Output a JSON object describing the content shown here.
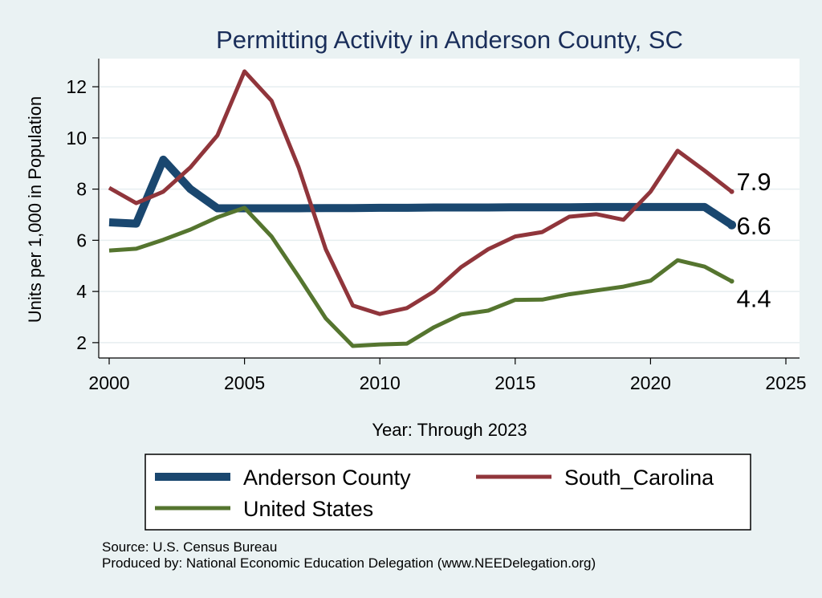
{
  "chart_data": {
    "type": "line",
    "title": "Permitting Activity in Anderson County, SC",
    "xlabel": "Year: Through 2023",
    "ylabel": "Units per 1,000 in Population",
    "xlim": [
      2000,
      2025
    ],
    "ylim": [
      1.4,
      13.1
    ],
    "xticks": [
      "2000",
      "2005",
      "2010",
      "2015",
      "2020",
      "2025"
    ],
    "yticks": [
      "2",
      "4",
      "6",
      "8",
      "10",
      "12"
    ],
    "x": [
      2000,
      2001,
      2002,
      2003,
      2004,
      2005,
      2006,
      2007,
      2008,
      2009,
      2010,
      2011,
      2012,
      2013,
      2014,
      2015,
      2016,
      2017,
      2018,
      2019,
      2020,
      2021,
      2022,
      2023
    ],
    "series": [
      {
        "name": "Anderson County",
        "color": "#1a476f",
        "values": [
          6.7,
          6.65,
          9.15,
          8.0,
          7.25,
          7.25,
          7.25,
          7.25,
          7.26,
          7.26,
          7.27,
          7.27,
          7.28,
          7.28,
          7.28,
          7.29,
          7.29,
          7.29,
          7.3,
          7.3,
          7.3,
          7.3,
          7.3,
          6.6
        ],
        "end_label": "6.6"
      },
      {
        "name": "South_Carolina",
        "color": "#90353b",
        "values": [
          8.05,
          7.45,
          7.9,
          8.85,
          10.1,
          12.6,
          11.45,
          8.85,
          5.65,
          3.45,
          3.12,
          3.35,
          4.0,
          4.95,
          5.65,
          6.15,
          6.32,
          6.92,
          7.02,
          6.8,
          7.9,
          9.5,
          8.72,
          7.9
        ],
        "end_label": "7.9"
      },
      {
        "name": "United States",
        "color": "#55752f",
        "values": [
          5.6,
          5.67,
          6.02,
          6.42,
          6.9,
          7.27,
          6.15,
          4.58,
          2.95,
          1.87,
          1.93,
          1.96,
          2.6,
          3.1,
          3.25,
          3.67,
          3.68,
          3.89,
          4.04,
          4.19,
          4.42,
          5.22,
          4.97,
          4.4
        ],
        "end_label": "4.4"
      }
    ],
    "legend_position": "bottom"
  },
  "source_line": "Source: U.S. Census Bureau",
  "produced_line": "Produced by: National Economic Education Delegation (www.NEEDelegation.org)"
}
